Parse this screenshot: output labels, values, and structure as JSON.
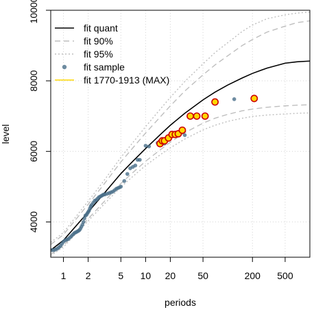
{
  "chart_data": {
    "type": "scatter",
    "xlabel": "periods",
    "ylabel": "level",
    "x_scale": "log",
    "xlim": [
      0.7,
      1000
    ],
    "ylim": [
      3000,
      10000
    ],
    "x_ticks": [
      1,
      2,
      5,
      10,
      20,
      50,
      200,
      500
    ],
    "x_tick_labels": [
      "1",
      "2",
      "5",
      "10",
      "20",
      "50",
      "200",
      "500"
    ],
    "y_ticks": [
      4000,
      6000,
      8000,
      10000
    ],
    "y_tick_labels": [
      "4000",
      "6000",
      "8000",
      "10000"
    ],
    "grid": true,
    "legend_position": "top-left",
    "legend": [
      {
        "label": "fit quant",
        "style": "solid-line",
        "color": "#000000"
      },
      {
        "label": "fit 90%",
        "style": "dashed-line",
        "color": "#bebebe"
      },
      {
        "label": "fit 95%",
        "style": "dotted-line",
        "color": "#bebebe"
      },
      {
        "label": "fit sample",
        "style": "point",
        "color": "#4a6f8a"
      },
      {
        "label": "fit 1770-1913 (MAX)",
        "style": "point-outlined",
        "color": "#ffd700",
        "edge_color": "#cc0000"
      }
    ],
    "series": [
      {
        "key": "quant",
        "style": "solid",
        "color": "#000000",
        "width": 1.6,
        "x": [
          0.7,
          1,
          2,
          3,
          5,
          7,
          10,
          15,
          20,
          30,
          50,
          70,
          100,
          150,
          200,
          300,
          500,
          700,
          1000
        ],
        "y": [
          3200,
          3480,
          4280,
          4760,
          5370,
          5720,
          6080,
          6470,
          6740,
          7080,
          7460,
          7680,
          7880,
          8080,
          8210,
          8360,
          8500,
          8540,
          8560
        ]
      },
      {
        "key": "p90_upper",
        "style": "dashed",
        "color": "#bebebe",
        "width": 1.4,
        "x": [
          0.7,
          1,
          2,
          3,
          5,
          7,
          10,
          15,
          20,
          30,
          50,
          70,
          100,
          150,
          200,
          300,
          500,
          700,
          1000
        ],
        "y": [
          3360,
          3640,
          4500,
          5020,
          5700,
          6100,
          6520,
          6970,
          7290,
          7710,
          8170,
          8450,
          8710,
          9000,
          9170,
          9380,
          9550,
          9650,
          9700
        ]
      },
      {
        "key": "p90_lower",
        "style": "dashed",
        "color": "#bebebe",
        "width": 1.4,
        "x": [
          0.7,
          1,
          2,
          3,
          5,
          7,
          10,
          15,
          20,
          30,
          50,
          70,
          100,
          150,
          200,
          300,
          500,
          700,
          1000
        ],
        "y": [
          3080,
          3330,
          4090,
          4530,
          5090,
          5400,
          5720,
          6040,
          6260,
          6530,
          6800,
          6940,
          7050,
          7150,
          7200,
          7250,
          7290,
          7310,
          7320
        ]
      },
      {
        "key": "p95_upper",
        "style": "dotted",
        "color": "#bebebe",
        "width": 1.4,
        "x": [
          0.7,
          1,
          2,
          3,
          5,
          7,
          10,
          15,
          20,
          30,
          50,
          70,
          100,
          150,
          200,
          300,
          500,
          700,
          1000
        ],
        "y": [
          3420,
          3700,
          4590,
          5120,
          5830,
          6250,
          6700,
          7190,
          7530,
          7980,
          8480,
          8800,
          9080,
          9400,
          9580,
          9760,
          9870,
          9920,
          9950
        ]
      },
      {
        "key": "p95_lower",
        "style": "dotted",
        "color": "#bebebe",
        "width": 1.4,
        "x": [
          0.7,
          1,
          2,
          3,
          5,
          7,
          10,
          15,
          20,
          30,
          50,
          70,
          100,
          150,
          200,
          300,
          500,
          700,
          1000
        ],
        "y": [
          3040,
          3290,
          4030,
          4460,
          4990,
          5290,
          5600,
          5900,
          6100,
          6350,
          6610,
          6740,
          6850,
          6940,
          6990,
          7030,
          7060,
          7080,
          7090
        ]
      }
    ],
    "sample_points": {
      "color": "#4a6f8a",
      "x": [
        0.72,
        0.76,
        0.8,
        0.84,
        0.88,
        0.92,
        0.96,
        1.0,
        1.05,
        1.1,
        1.15,
        1.2,
        1.25,
        1.3,
        1.35,
        1.4,
        1.45,
        1.5,
        1.55,
        1.6,
        1.65,
        1.7,
        1.75,
        1.8,
        1.85,
        1.9,
        1.95,
        2.0,
        2.05,
        2.1,
        2.15,
        2.2,
        2.3,
        2.4,
        2.5,
        2.6,
        2.7,
        2.8,
        2.9,
        3.0,
        3.1,
        3.2,
        3.4,
        3.6,
        3.8,
        4.0,
        4.2,
        4.4,
        4.6,
        4.8,
        5.0,
        5.5,
        6.0,
        6.5,
        7.0,
        7.5,
        8.0,
        8.5,
        10.0,
        11.0,
        14.0,
        15.0,
        17.0,
        30.0,
        120.0
      ],
      "y": [
        3200,
        3200,
        3220,
        3240,
        3280,
        3320,
        3380,
        3440,
        3480,
        3500,
        3520,
        3560,
        3600,
        3640,
        3680,
        3700,
        3720,
        3740,
        3760,
        3800,
        3860,
        3920,
        4000,
        4100,
        4180,
        4200,
        4240,
        4280,
        4320,
        4380,
        4440,
        4480,
        4540,
        4600,
        4620,
        4660,
        4700,
        4720,
        4740,
        4760,
        4780,
        4780,
        4800,
        4820,
        4840,
        4860,
        4900,
        4940,
        4960,
        4980,
        5000,
        5160,
        5360,
        5520,
        5560,
        5600,
        5760,
        5760,
        6160,
        6140,
        6240,
        6300,
        6220,
        6460,
        7480
      ]
    },
    "max_points": {
      "fill": "#ffd700",
      "edge": "#cc0000",
      "x": [
        15,
        16,
        17,
        19,
        21,
        23,
        25,
        28,
        35,
        42,
        53,
        70,
        210
      ],
      "y": [
        6220,
        6300,
        6300,
        6380,
        6480,
        6480,
        6500,
        6600,
        7000,
        7000,
        7000,
        7400,
        7500
      ]
    }
  }
}
